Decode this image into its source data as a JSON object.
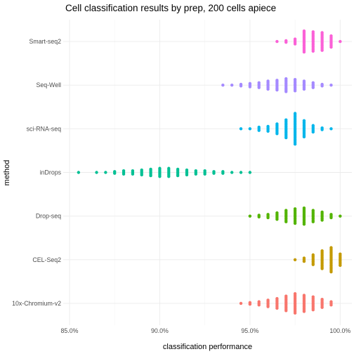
{
  "chart_data": {
    "type": "scatter",
    "subtype": "dot-strip (beeswarm)",
    "title": "Cell classification results by prep, 200 cells apiece",
    "xlabel": "classification performance",
    "ylabel": "method",
    "xlim": [
      0.8465,
      1.0065
    ],
    "x_ticks": [
      0.85,
      0.9,
      0.95,
      1.0
    ],
    "x_tick_labels": [
      "85.0%",
      "90.0%",
      "95.0%",
      "100.0%"
    ],
    "grid": true,
    "legend": "none",
    "categories": [
      "10x-Chromium-v2",
      "CEL-Seq2",
      "Drop-seq",
      "inDrops",
      "sci-RNA-seq",
      "Seq-Well",
      "Smart-seq2"
    ],
    "colors": {
      "10x-Chromium-v2": "#F8766D",
      "CEL-Seq2": "#C49A00",
      "Drop-seq": "#53B400",
      "inDrops": "#00C094",
      "sci-RNA-seq": "#00B6EB",
      "Seq-Well": "#A58AFF",
      "Smart-seq2": "#FB61D7"
    },
    "series": [
      {
        "category": "10x-Chromium-v2",
        "bins": [
          {
            "x": 0.945,
            "count": 1
          },
          {
            "x": 0.95,
            "count": 2
          },
          {
            "x": 0.955,
            "count": 3
          },
          {
            "x": 0.96,
            "count": 5
          },
          {
            "x": 0.965,
            "count": 7
          },
          {
            "x": 0.97,
            "count": 10
          },
          {
            "x": 0.975,
            "count": 13
          },
          {
            "x": 0.98,
            "count": 11
          },
          {
            "x": 0.985,
            "count": 9
          },
          {
            "x": 0.99,
            "count": 6
          },
          {
            "x": 0.995,
            "count": 3
          }
        ]
      },
      {
        "category": "CEL-Seq2",
        "bins": [
          {
            "x": 0.975,
            "count": 1
          },
          {
            "x": 0.98,
            "count": 3
          },
          {
            "x": 0.985,
            "count": 7
          },
          {
            "x": 0.99,
            "count": 12
          },
          {
            "x": 0.995,
            "count": 16
          },
          {
            "x": 1.0,
            "count": 8
          }
        ]
      },
      {
        "category": "Drop-seq",
        "bins": [
          {
            "x": 0.95,
            "count": 1
          },
          {
            "x": 0.955,
            "count": 2
          },
          {
            "x": 0.96,
            "count": 3
          },
          {
            "x": 0.965,
            "count": 5
          },
          {
            "x": 0.97,
            "count": 8
          },
          {
            "x": 0.975,
            "count": 10
          },
          {
            "x": 0.98,
            "count": 11
          },
          {
            "x": 0.985,
            "count": 8
          },
          {
            "x": 0.99,
            "count": 6
          },
          {
            "x": 0.995,
            "count": 3
          },
          {
            "x": 1.0,
            "count": 1
          }
        ]
      },
      {
        "category": "inDrops",
        "bins": [
          {
            "x": 0.855,
            "count": 1
          },
          {
            "x": 0.865,
            "count": 1
          },
          {
            "x": 0.87,
            "count": 1
          },
          {
            "x": 0.875,
            "count": 2
          },
          {
            "x": 0.88,
            "count": 3
          },
          {
            "x": 0.885,
            "count": 3
          },
          {
            "x": 0.89,
            "count": 4
          },
          {
            "x": 0.895,
            "count": 5
          },
          {
            "x": 0.9,
            "count": 6
          },
          {
            "x": 0.905,
            "count": 6
          },
          {
            "x": 0.91,
            "count": 5
          },
          {
            "x": 0.915,
            "count": 4
          },
          {
            "x": 0.92,
            "count": 3
          },
          {
            "x": 0.925,
            "count": 3
          },
          {
            "x": 0.93,
            "count": 2
          },
          {
            "x": 0.935,
            "count": 2
          },
          {
            "x": 0.94,
            "count": 1
          },
          {
            "x": 0.945,
            "count": 1
          },
          {
            "x": 0.95,
            "count": 1
          }
        ]
      },
      {
        "category": "sci-RNA-seq",
        "bins": [
          {
            "x": 0.945,
            "count": 1
          },
          {
            "x": 0.95,
            "count": 1
          },
          {
            "x": 0.955,
            "count": 3
          },
          {
            "x": 0.96,
            "count": 4
          },
          {
            "x": 0.965,
            "count": 7
          },
          {
            "x": 0.97,
            "count": 12
          },
          {
            "x": 0.975,
            "count": 20
          },
          {
            "x": 0.98,
            "count": 11
          },
          {
            "x": 0.985,
            "count": 5
          },
          {
            "x": 0.99,
            "count": 2
          },
          {
            "x": 0.995,
            "count": 1
          }
        ]
      },
      {
        "category": "Seq-Well",
        "bins": [
          {
            "x": 0.935,
            "count": 1
          },
          {
            "x": 0.94,
            "count": 1
          },
          {
            "x": 0.945,
            "count": 2
          },
          {
            "x": 0.95,
            "count": 3
          },
          {
            "x": 0.955,
            "count": 4
          },
          {
            "x": 0.96,
            "count": 6
          },
          {
            "x": 0.965,
            "count": 7
          },
          {
            "x": 0.97,
            "count": 9
          },
          {
            "x": 0.975,
            "count": 8
          },
          {
            "x": 0.98,
            "count": 6
          },
          {
            "x": 0.985,
            "count": 4
          },
          {
            "x": 0.99,
            "count": 2
          },
          {
            "x": 0.995,
            "count": 1
          }
        ]
      },
      {
        "category": "Smart-seq2",
        "bins": [
          {
            "x": 0.965,
            "count": 1
          },
          {
            "x": 0.97,
            "count": 2
          },
          {
            "x": 0.975,
            "count": 4
          },
          {
            "x": 0.98,
            "count": 14
          },
          {
            "x": 0.985,
            "count": 13
          },
          {
            "x": 0.99,
            "count": 12
          },
          {
            "x": 0.995,
            "count": 8
          },
          {
            "x": 1.0,
            "count": 1
          }
        ]
      }
    ]
  }
}
